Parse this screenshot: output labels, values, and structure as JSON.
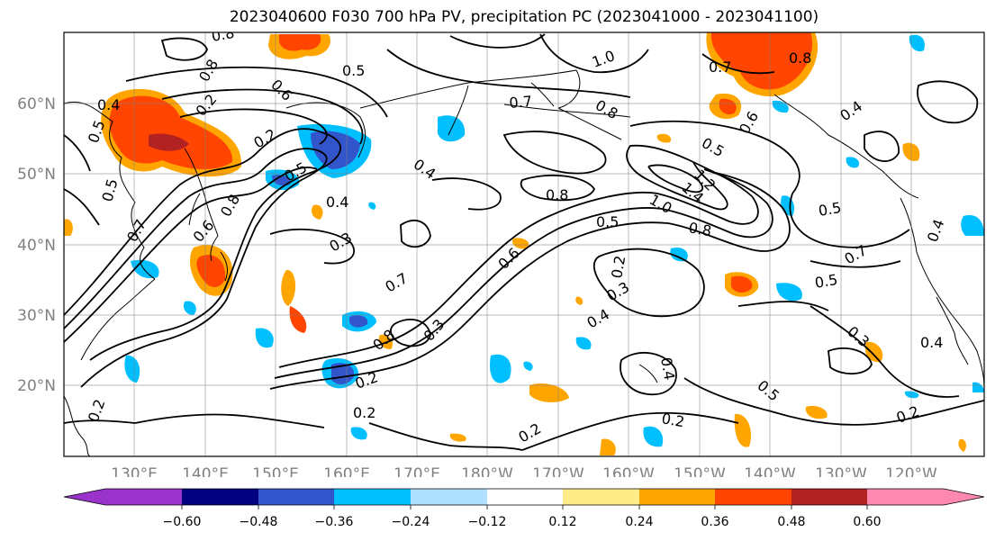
{
  "title": "2023040600 F030 700 hPa PV, precipitation PC (2023041000 - 2023041100)",
  "map": {
    "lat_labels": [
      "60°N",
      "50°N",
      "40°N",
      "30°N",
      "20°N"
    ],
    "lon_labels": [
      "130°E",
      "140°E",
      "150°E",
      "160°E",
      "170°E",
      "180°W",
      "170°W",
      "160°W",
      "150°W",
      "140°W",
      "130°W",
      "120°W"
    ],
    "label_color": "#808080",
    "contour_labels": [
      "0.8",
      "0.5",
      "0.6",
      "0.8",
      "0.7",
      "1.0",
      "0.7",
      "0.8",
      "0.8",
      "0.4",
      "0.4",
      "0.5",
      "0.2",
      "0.2",
      "0.5",
      "0.4",
      "0.6",
      "0.5",
      "1.2",
      "1.4",
      "1.0",
      "0.8",
      "0.5",
      "0.8",
      "0.4",
      "0.5",
      "0.8",
      "0.3",
      "0.6",
      "0.7",
      "0.3",
      "0.2",
      "0.3",
      "0.7",
      "0.5",
      "0.4",
      "0.3",
      "0.2",
      "0.5",
      "0.4",
      "0.2",
      "0.4",
      "0.2",
      "0.5",
      "0.2",
      "0.2",
      "0.4",
      "0.6",
      "0.7",
      "0.8",
      "0.2"
    ]
  },
  "colorbar": {
    "colors": [
      "#9933cc",
      "#000080",
      "#3355cc",
      "#00bfff",
      "#b0e0ff",
      "#ffffff",
      "#ffeb88",
      "#ffa500",
      "#ff4500",
      "#b22222",
      "#ff88b0"
    ],
    "tick_labels": [
      "−0.60",
      "−0.48",
      "−0.36",
      "−0.24",
      "−0.12",
      "0.12",
      "0.24",
      "0.36",
      "0.48",
      "0.60"
    ]
  }
}
